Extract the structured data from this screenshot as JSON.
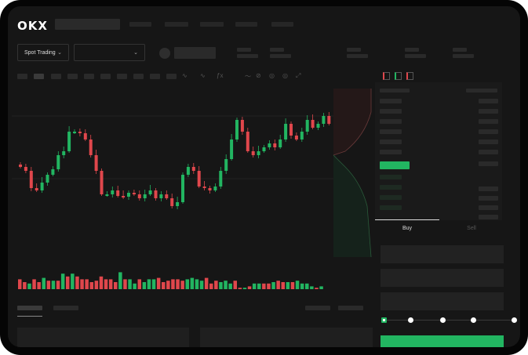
{
  "header": {
    "logo": "OKX",
    "nav_items": 5
  },
  "market": {
    "type_select": "Spot Trading",
    "pair_select": ""
  },
  "orderbook": {
    "icons": [
      "orderbook-both-icon",
      "orderbook-buy-icon",
      "orderbook-sell-icon"
    ]
  },
  "trade": {
    "tabs": [
      {
        "label": "Buy",
        "active": true
      },
      {
        "label": "Sell",
        "active": false
      }
    ],
    "slider_level": 0
  },
  "colors": {
    "up": "#22b561",
    "down": "#e0474c",
    "background": "#161616"
  },
  "chart_data": {
    "type": "candlestick",
    "closes": [
      95,
      90,
      68,
      65,
      75,
      85,
      92,
      110,
      115,
      140,
      140,
      138,
      130,
      110,
      90,
      60,
      60,
      65,
      58,
      57,
      62,
      60,
      55,
      60,
      65,
      55,
      60,
      55,
      45,
      50,
      85,
      95,
      90,
      70,
      68,
      65,
      70,
      90,
      105,
      130,
      155,
      140,
      115,
      110,
      115,
      120,
      125,
      120,
      130,
      150,
      135,
      130,
      140,
      155,
      145,
      150,
      160,
      150
    ],
    "volume": [
      [
        7,
        "d"
      ],
      [
        5,
        "d"
      ],
      [
        4,
        "u"
      ],
      [
        7,
        "d"
      ],
      [
        5,
        "d"
      ],
      [
        8,
        "u"
      ],
      [
        6,
        "d"
      ],
      [
        6,
        "u"
      ],
      [
        6,
        "d"
      ],
      [
        11,
        "u"
      ],
      [
        9,
        "d"
      ],
      [
        11,
        "u"
      ],
      [
        9,
        "d"
      ],
      [
        7,
        "d"
      ],
      [
        7,
        "d"
      ],
      [
        5,
        "d"
      ],
      [
        6,
        "d"
      ],
      [
        9,
        "d"
      ],
      [
        7,
        "d"
      ],
      [
        7,
        "d"
      ],
      [
        5,
        "d"
      ],
      [
        12,
        "u"
      ],
      [
        7,
        "d"
      ],
      [
        7,
        "u"
      ],
      [
        4,
        "u"
      ],
      [
        7,
        "d"
      ],
      [
        5,
        "u"
      ],
      [
        7,
        "u"
      ],
      [
        7,
        "u"
      ],
      [
        8,
        "d"
      ],
      [
        5,
        "d"
      ],
      [
        6,
        "d"
      ],
      [
        7,
        "d"
      ],
      [
        7,
        "d"
      ],
      [
        6,
        "d"
      ],
      [
        7,
        "u"
      ],
      [
        8,
        "u"
      ],
      [
        7,
        "u"
      ],
      [
        6,
        "u"
      ],
      [
        8,
        "d"
      ],
      [
        4,
        "d"
      ],
      [
        6,
        "d"
      ],
      [
        5,
        "u"
      ],
      [
        6,
        "u"
      ],
      [
        4,
        "u"
      ],
      [
        6,
        "d"
      ],
      [
        1,
        "d"
      ],
      [
        1,
        "u"
      ],
      [
        2,
        "d"
      ],
      [
        4,
        "u"
      ],
      [
        4,
        "u"
      ],
      [
        4,
        "d"
      ],
      [
        4,
        "d"
      ],
      [
        5,
        "u"
      ],
      [
        6,
        "d"
      ],
      [
        5,
        "d"
      ],
      [
        5,
        "u"
      ],
      [
        5,
        "d"
      ],
      [
        6,
        "u"
      ],
      [
        4,
        "u"
      ],
      [
        4,
        "u"
      ],
      [
        2,
        "u"
      ],
      [
        1,
        "d"
      ],
      [
        2,
        "u"
      ]
    ]
  }
}
